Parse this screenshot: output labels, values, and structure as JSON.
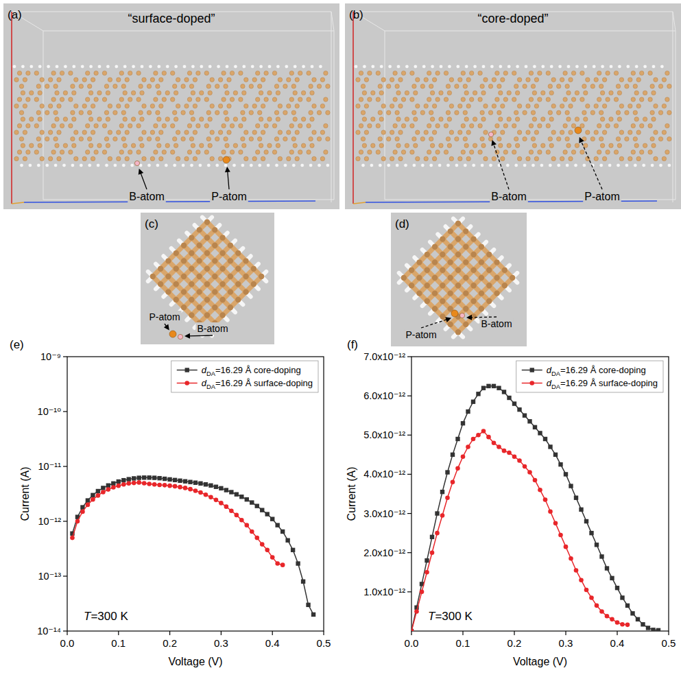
{
  "panels": [
    {
      "letter": "(a)",
      "title": "“surface-doped”",
      "labels": [
        "B-atom",
        "P-atom"
      ]
    },
    {
      "letter": "(b)",
      "title": "“core-doped”",
      "labels": [
        "B-atom",
        "P-atom"
      ]
    },
    {
      "letter": "(c)",
      "labels": [
        "P-atom",
        "B-atom"
      ]
    },
    {
      "letter": "(d)",
      "labels": [
        "P-atom",
        "B-atom"
      ]
    }
  ],
  "chart_data": [
    {
      "type": "line",
      "title": "(e)",
      "x_label": "Voltage (V)",
      "y_label": "Current (A)",
      "log": "y",
      "annotations": [
        "T=300 K"
      ],
      "legend": "upper right",
      "grid": false,
      "xlim": [
        0,
        0.5
      ],
      "xticks": [
        {
          "value": 0,
          "label": "0.0"
        },
        {
          "value": 0.1,
          "label": "0.1"
        },
        {
          "value": 0.2,
          "label": "0.2"
        },
        {
          "value": 0.3,
          "label": "0.3"
        },
        {
          "value": 0.4,
          "label": "0.4"
        },
        {
          "value": 0.5,
          "label": "0.5"
        }
      ],
      "ylim": [
        1e-14,
        1e-09
      ],
      "yticks": [
        {
          "value": 1e-14,
          "label": "10⁻¹⁴"
        },
        {
          "value": 1e-13,
          "label": "10⁻¹³"
        },
        {
          "value": 1e-12,
          "label": "10⁻¹²"
        },
        {
          "value": 1e-11,
          "label": "10⁻¹¹"
        },
        {
          "value": 1e-10,
          "label": "10⁻¹⁰"
        },
        {
          "value": 1e-09,
          "label": "10⁻⁹"
        }
      ],
      "series": [
        {
          "name": "dDA=16.29 Å core-doping",
          "color": "#333333",
          "marker": "square",
          "line_style": "solid",
          "x": [
            0.01,
            0.02,
            0.03,
            0.04,
            0.05,
            0.06,
            0.07,
            0.08,
            0.09,
            0.1,
            0.11,
            0.12,
            0.13,
            0.14,
            0.15,
            0.16,
            0.17,
            0.18,
            0.19,
            0.2,
            0.21,
            0.22,
            0.23,
            0.24,
            0.25,
            0.26,
            0.27,
            0.28,
            0.29,
            0.3,
            0.31,
            0.32,
            0.33,
            0.34,
            0.35,
            0.36,
            0.37,
            0.38,
            0.39,
            0.4,
            0.41,
            0.42,
            0.43,
            0.44,
            0.45,
            0.46,
            0.47,
            0.48
          ],
          "values": [
            6e-13,
            1.2e-12,
            1.8e-12,
            2.4e-12,
            3e-12,
            3.55e-12,
            4.05e-12,
            4.5e-12,
            4.9e-12,
            5.3e-12,
            5.6e-12,
            5.85e-12,
            6.05e-12,
            6.2e-12,
            6.25e-12,
            6.25e-12,
            6.2e-12,
            6.1e-12,
            5.95e-12,
            5.8e-12,
            5.65e-12,
            5.5e-12,
            5.35e-12,
            5.2e-12,
            5.05e-12,
            4.9e-12,
            4.7e-12,
            4.5e-12,
            4.25e-12,
            4e-12,
            3.7e-12,
            3.4e-12,
            3.1e-12,
            2.8e-12,
            2.5e-12,
            2.2e-12,
            1.9e-12,
            1.6e-12,
            1.35e-12,
            1.1e-12,
            8.5e-13,
            6.5e-13,
            4.5e-13,
            3e-13,
            1.7e-13,
            8e-14,
            3e-14,
            2e-14
          ]
        },
        {
          "name": "dDA=16.29 Å surface-doping",
          "color": "#e8262a",
          "marker": "circle",
          "line_style": "solid",
          "x": [
            0.01,
            0.02,
            0.03,
            0.04,
            0.05,
            0.06,
            0.07,
            0.08,
            0.09,
            0.1,
            0.11,
            0.12,
            0.13,
            0.14,
            0.15,
            0.16,
            0.17,
            0.18,
            0.19,
            0.2,
            0.21,
            0.22,
            0.23,
            0.24,
            0.25,
            0.26,
            0.27,
            0.28,
            0.29,
            0.3,
            0.31,
            0.32,
            0.33,
            0.34,
            0.35,
            0.36,
            0.37,
            0.38,
            0.39,
            0.4,
            0.41,
            0.42
          ],
          "values": [
            5e-13,
            1e-12,
            1.5e-12,
            2e-12,
            2.5e-12,
            2.95e-12,
            3.4e-12,
            3.8e-12,
            4.15e-12,
            4.45e-12,
            4.7e-12,
            4.9e-12,
            5e-12,
            5.1e-12,
            4.95e-12,
            4.8e-12,
            4.7e-12,
            4.6e-12,
            4.55e-12,
            4.45e-12,
            4.35e-12,
            4.2e-12,
            4.05e-12,
            3.85e-12,
            3.6e-12,
            3.35e-12,
            3.05e-12,
            2.75e-12,
            2.45e-12,
            2.15e-12,
            1.85e-12,
            1.55e-12,
            1.3e-12,
            1.05e-12,
            8.5e-13,
            6.5e-13,
            5e-13,
            3.8e-13,
            3e-13,
            2.2e-13,
            1.7e-13,
            1.6e-13
          ]
        }
      ]
    },
    {
      "type": "line",
      "title": "(f)",
      "x_label": "Voltage (V)",
      "y_label": "Current (A)",
      "annotations": [
        "T=300 K"
      ],
      "legend": "upper right",
      "grid": false,
      "xlim": [
        0,
        0.5
      ],
      "xticks": [
        {
          "value": 0,
          "label": "0.0"
        },
        {
          "value": 0.1,
          "label": "0.1"
        },
        {
          "value": 0.2,
          "label": "0.2"
        },
        {
          "value": 0.3,
          "label": "0.3"
        },
        {
          "value": 0.4,
          "label": "0.4"
        },
        {
          "value": 0.5,
          "label": "0.5"
        }
      ],
      "ylim": [
        0,
        7e-12
      ],
      "yticks": [
        {
          "value": 1e-12,
          "label": "1.0x10⁻¹²"
        },
        {
          "value": 2e-12,
          "label": "2.0x10⁻¹²"
        },
        {
          "value": 3e-12,
          "label": "3.0x10⁻¹²"
        },
        {
          "value": 4e-12,
          "label": "4.0x10⁻¹²"
        },
        {
          "value": 5e-12,
          "label": "5.0x10⁻¹²"
        },
        {
          "value": 6e-12,
          "label": "6.0x10⁻¹²"
        },
        {
          "value": 7e-12,
          "label": "7.0x10⁻¹²"
        }
      ],
      "series": [
        {
          "name": "dDA=16.29 Å core-doping",
          "color": "#333333",
          "marker": "square",
          "line_style": "solid",
          "x": [
            0,
            0.01,
            0.02,
            0.03,
            0.04,
            0.05,
            0.06,
            0.07,
            0.08,
            0.09,
            0.1,
            0.11,
            0.12,
            0.13,
            0.14,
            0.15,
            0.16,
            0.17,
            0.18,
            0.19,
            0.2,
            0.21,
            0.22,
            0.23,
            0.24,
            0.25,
            0.26,
            0.27,
            0.28,
            0.29,
            0.3,
            0.31,
            0.32,
            0.33,
            0.34,
            0.35,
            0.36,
            0.37,
            0.38,
            0.39,
            0.4,
            0.41,
            0.42,
            0.43,
            0.44,
            0.45,
            0.46,
            0.47,
            0.48
          ],
          "values": [
            0,
            6e-13,
            1.2e-12,
            1.8e-12,
            2.4e-12,
            3e-12,
            3.55e-12,
            4.05e-12,
            4.5e-12,
            4.9e-12,
            5.3e-12,
            5.6e-12,
            5.85e-12,
            6.05e-12,
            6.2e-12,
            6.25e-12,
            6.25e-12,
            6.2e-12,
            6.1e-12,
            5.95e-12,
            5.8e-12,
            5.65e-12,
            5.5e-12,
            5.35e-12,
            5.2e-12,
            5.05e-12,
            4.9e-12,
            4.7e-12,
            4.5e-12,
            4.25e-12,
            4e-12,
            3.7e-12,
            3.4e-12,
            3.1e-12,
            2.8e-12,
            2.5e-12,
            2.2e-12,
            1.9e-12,
            1.6e-12,
            1.35e-12,
            1.1e-12,
            8.5e-13,
            6.5e-13,
            4.5e-13,
            3e-13,
            1.7e-13,
            8e-14,
            3e-14,
            2e-14
          ]
        },
        {
          "name": "dDA=16.29 Å surface-doping",
          "color": "#e8262a",
          "marker": "circle",
          "line_style": "solid",
          "x": [
            0,
            0.01,
            0.02,
            0.03,
            0.04,
            0.05,
            0.06,
            0.07,
            0.08,
            0.09,
            0.1,
            0.11,
            0.12,
            0.13,
            0.14,
            0.15,
            0.16,
            0.17,
            0.18,
            0.19,
            0.2,
            0.21,
            0.22,
            0.23,
            0.24,
            0.25,
            0.26,
            0.27,
            0.28,
            0.29,
            0.3,
            0.31,
            0.32,
            0.33,
            0.34,
            0.35,
            0.36,
            0.37,
            0.38,
            0.39,
            0.4,
            0.41,
            0.42
          ],
          "values": [
            0,
            5e-13,
            1e-12,
            1.5e-12,
            2e-12,
            2.5e-12,
            2.95e-12,
            3.4e-12,
            3.8e-12,
            4.15e-12,
            4.45e-12,
            4.7e-12,
            4.9e-12,
            5e-12,
            5.1e-12,
            4.95e-12,
            4.8e-12,
            4.7e-12,
            4.6e-12,
            4.55e-12,
            4.45e-12,
            4.35e-12,
            4.2e-12,
            4.05e-12,
            3.85e-12,
            3.6e-12,
            3.35e-12,
            3.05e-12,
            2.75e-12,
            2.45e-12,
            2.15e-12,
            1.85e-12,
            1.55e-12,
            1.3e-12,
            1.05e-12,
            8.5e-13,
            6.5e-13,
            5e-13,
            3.8e-13,
            3e-13,
            2.2e-13,
            1.7e-13,
            1.6e-13
          ]
        }
      ]
    }
  ]
}
